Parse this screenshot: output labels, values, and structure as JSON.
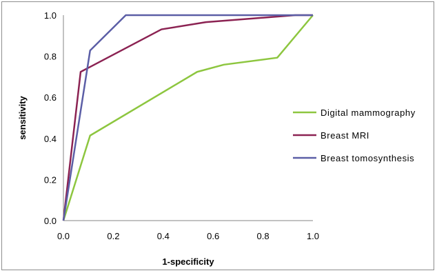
{
  "chart_data": {
    "type": "line",
    "title": "",
    "xlabel": "1-specificity",
    "ylabel": "sensitivity",
    "xlim": [
      0,
      1
    ],
    "ylim": [
      0,
      1
    ],
    "x_ticks": [
      "0.0",
      "0.2",
      "0.4",
      "0.6",
      "0.8",
      "1.0"
    ],
    "y_ticks": [
      "0.0",
      "0.2",
      "0.4",
      "0.6",
      "0.8",
      "1.0"
    ],
    "grid": false,
    "legend_position": "right",
    "series": [
      {
        "name": "Digital mammography",
        "color": "#8dc63f",
        "points": [
          [
            0,
            0
          ],
          [
            0.107,
            0.414
          ],
          [
            0.536,
            0.724
          ],
          [
            0.643,
            0.759
          ],
          [
            0.857,
            0.793
          ],
          [
            1.0,
            1.0
          ]
        ]
      },
      {
        "name": "Breast MRI",
        "color": "#8b2252",
        "points": [
          [
            0,
            0
          ],
          [
            0.069,
            0.724
          ],
          [
            0.393,
            0.931
          ],
          [
            0.571,
            0.966
          ],
          [
            0.929,
            1.0
          ],
          [
            1.0,
            1.0
          ]
        ]
      },
      {
        "name": "Breast tomosynthesis",
        "color": "#5b5ea6",
        "points": [
          [
            0,
            0
          ],
          [
            0.107,
            0.828
          ],
          [
            0.25,
            1.0
          ],
          [
            1.0,
            1.0
          ]
        ]
      }
    ]
  }
}
